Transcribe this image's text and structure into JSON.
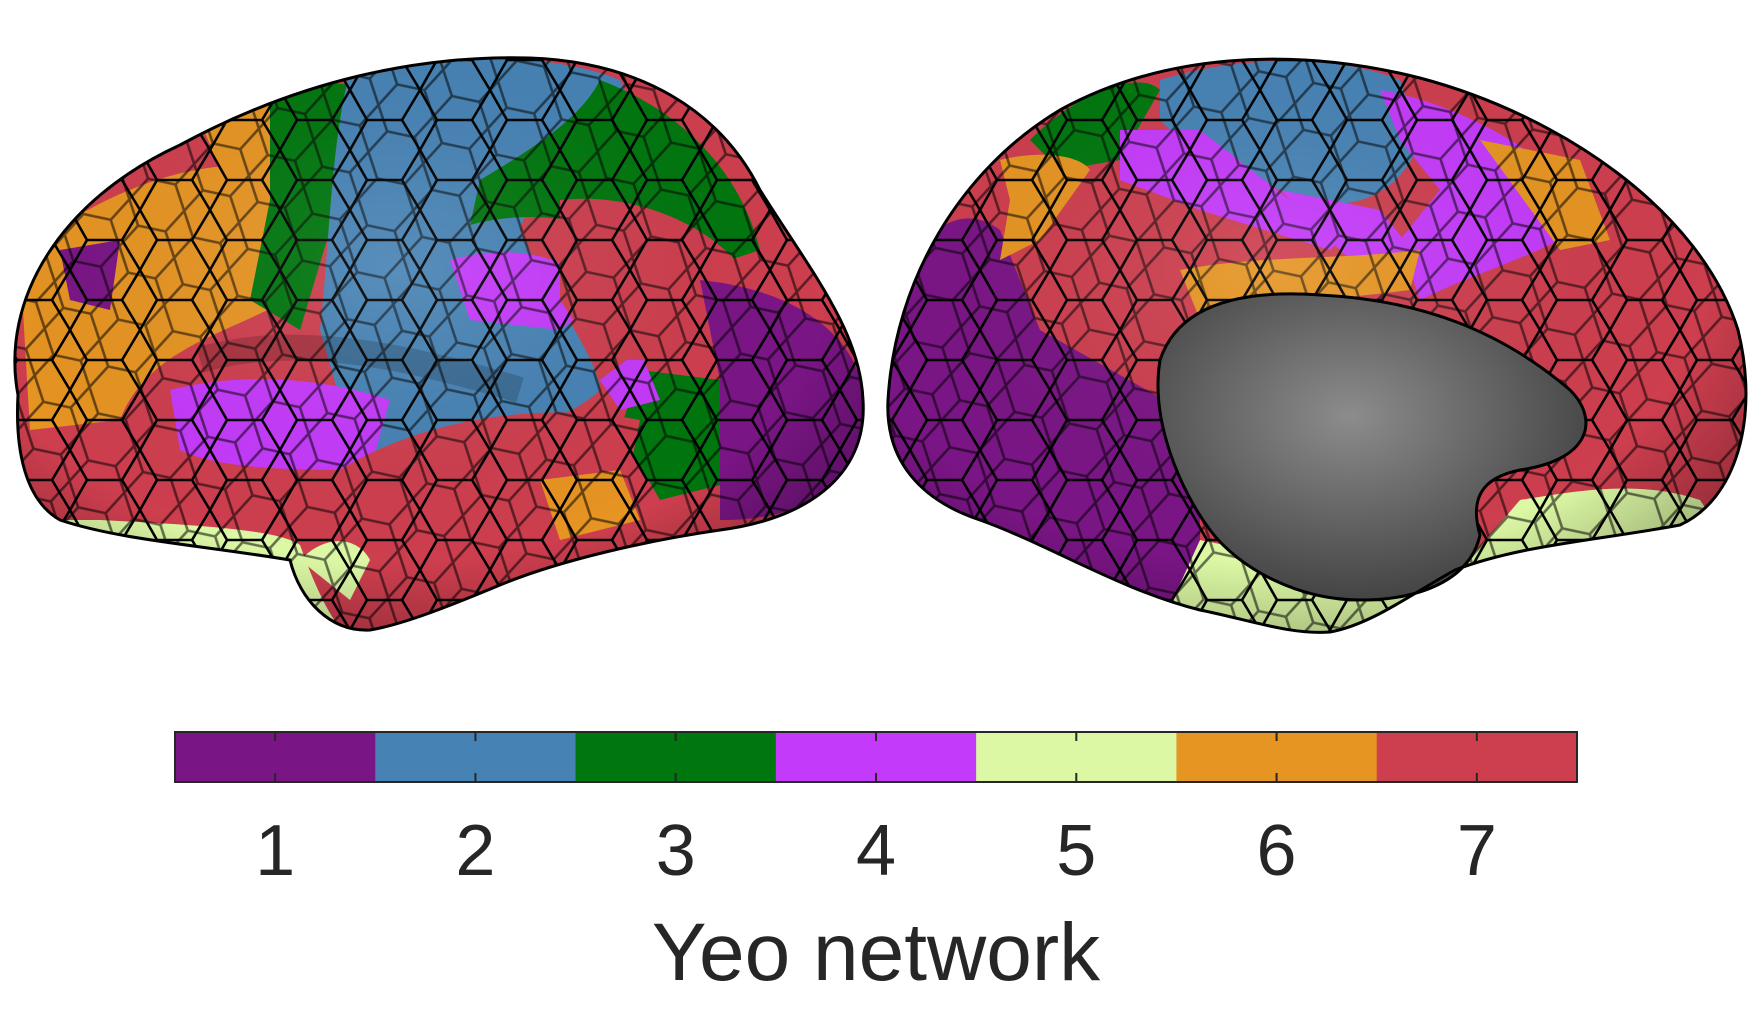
{
  "colorbar": {
    "title": "Yeo network",
    "networks": [
      {
        "label": "1",
        "color": "#7a1585"
      },
      {
        "label": "2",
        "color": "#4682b4"
      },
      {
        "label": "3",
        "color": "#00760e"
      },
      {
        "label": "4",
        "color": "#c43afa"
      },
      {
        "label": "5",
        "color": "#dcf8a4"
      },
      {
        "label": "6",
        "color": "#e69422"
      },
      {
        "label": "7",
        "color": "#cd3e4e"
      }
    ]
  },
  "medial_wall_color": "#7a7a7a",
  "parcel_border_color": "#000000"
}
